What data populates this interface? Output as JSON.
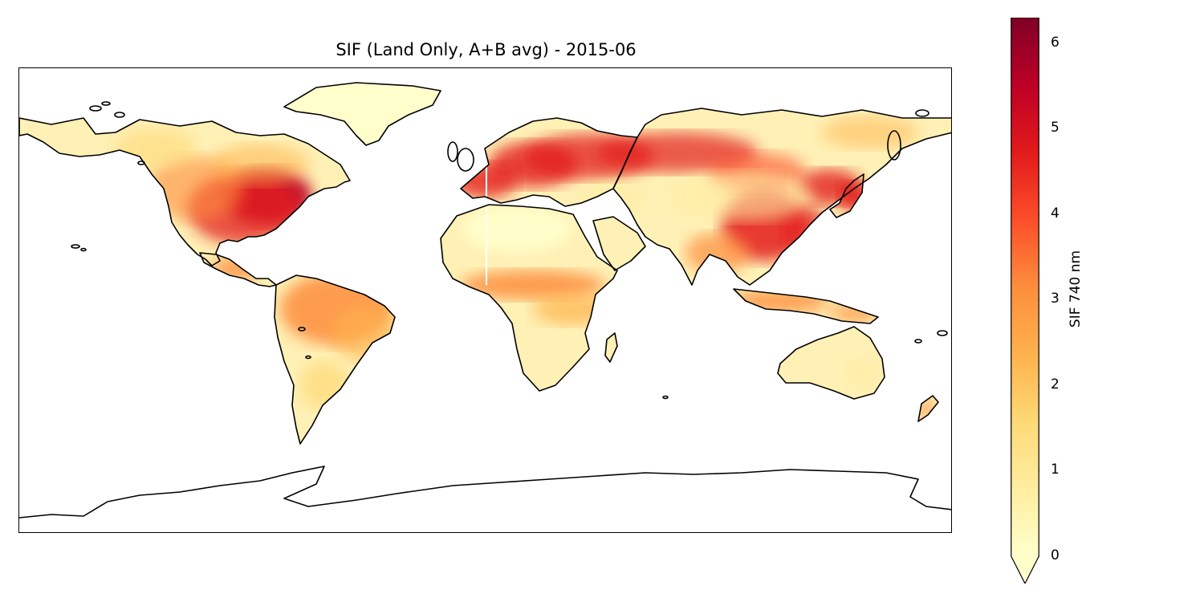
{
  "title": "SIF (Land Only, A+B avg) - 2015-06",
  "map": {
    "projection": "PlateCarree",
    "extent_lon": [
      -180,
      180
    ],
    "extent_lat": [
      -90,
      90
    ],
    "features": [
      "coastlines"
    ],
    "variable": "SIF 740 nm",
    "colormap": "YlOrRd",
    "regions": [
      {
        "name": "North America"
      },
      {
        "name": "Greenland"
      },
      {
        "name": "Central America"
      },
      {
        "name": "South America"
      },
      {
        "name": "Europe"
      },
      {
        "name": "Africa"
      },
      {
        "name": "Asia"
      },
      {
        "name": "Australia"
      },
      {
        "name": "Antarctica"
      }
    ]
  },
  "colorbar": {
    "label": "SIF 740 nm",
    "vmin": 0,
    "vmax": 6.3,
    "extend": "min",
    "ticks": [
      "0",
      "1",
      "2",
      "3",
      "4",
      "5",
      "6"
    ],
    "colors": [
      "#ffffcc",
      "#ffeda0",
      "#fed976",
      "#feb24c",
      "#fd8d3c",
      "#fc4e2a",
      "#e31a1c",
      "#bd0026",
      "#800026"
    ]
  }
}
